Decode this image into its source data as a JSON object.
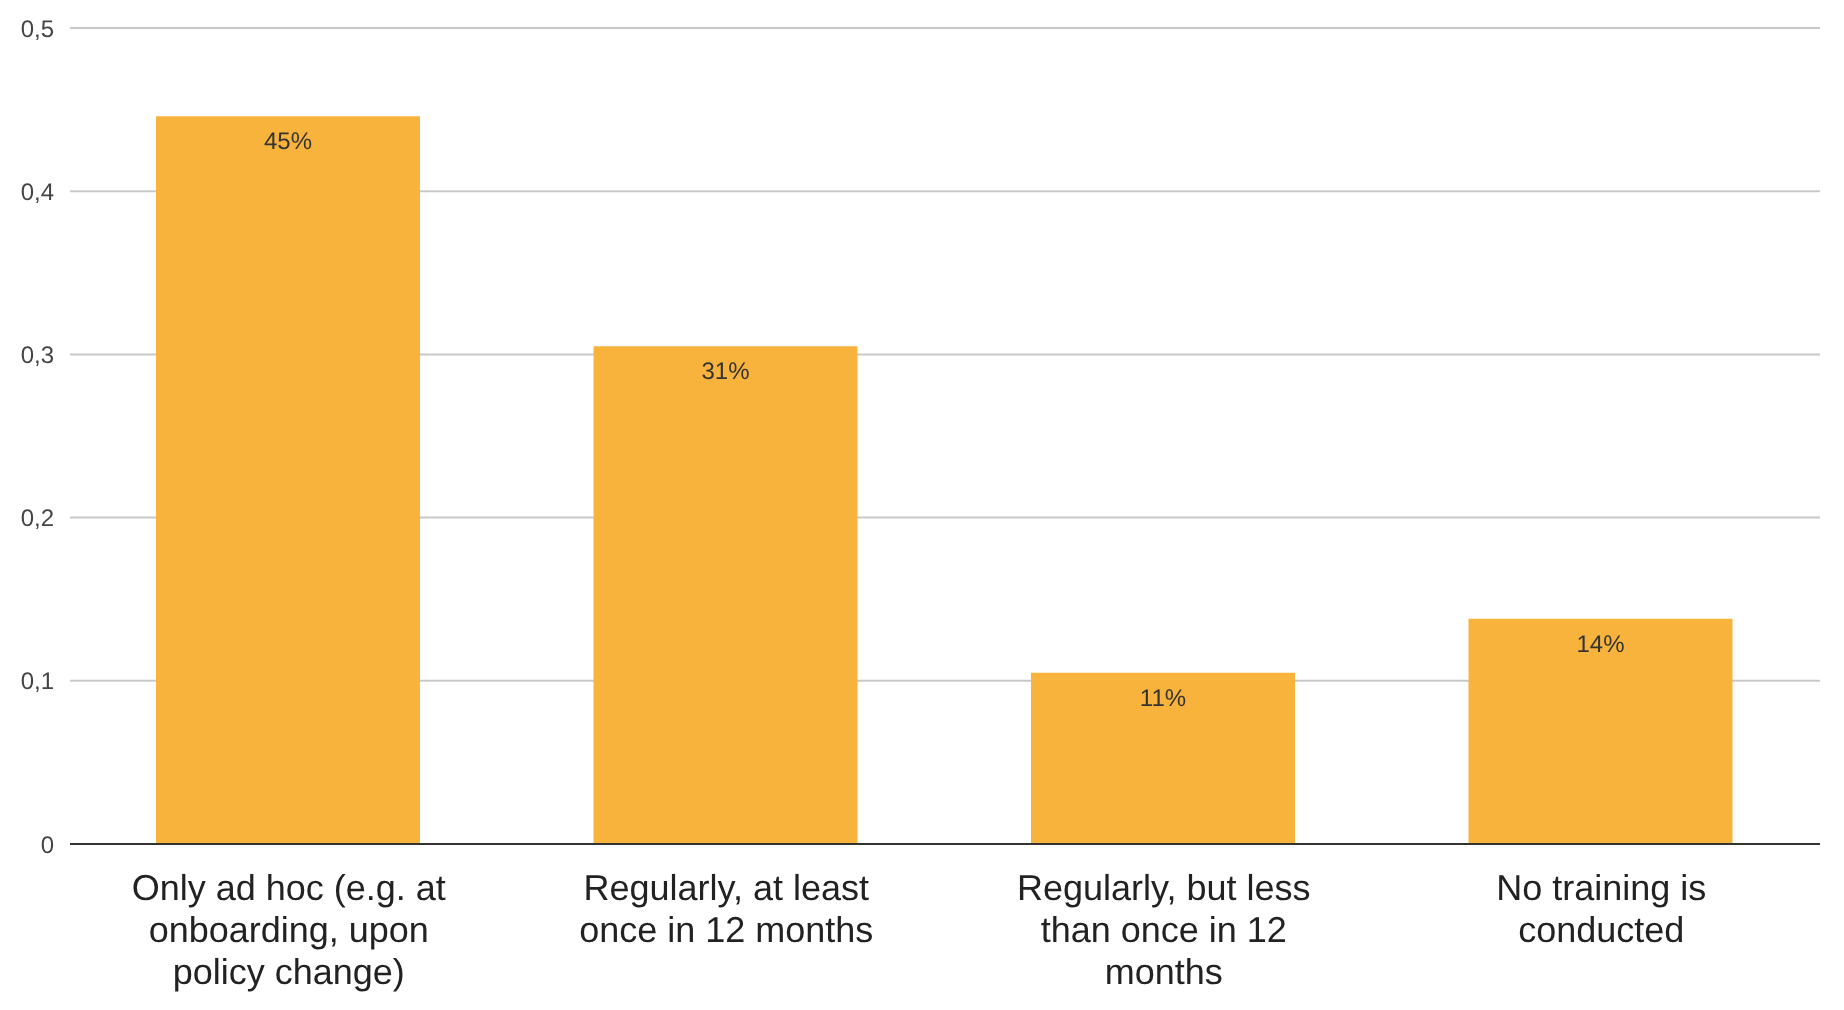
{
  "chart_data": {
    "type": "bar",
    "categories": [
      "Only ad hoc (e.g. at onboarding, upon policy change)",
      "Regularly, at least once in 12 months",
      "Regularly, but less than once in 12 months",
      "No training is conducted"
    ],
    "values": [
      0.446,
      0.305,
      0.105,
      0.138
    ],
    "value_labels": [
      "45%",
      "31%",
      "11%",
      "14%"
    ],
    "color": "#f8b33d",
    "ylim": [
      0,
      0.5
    ],
    "yticks": [
      {
        "value": 0,
        "label": "0"
      },
      {
        "value": 0.1,
        "label": "0,1"
      },
      {
        "value": 0.2,
        "label": "0,2"
      },
      {
        "value": 0.3,
        "label": "0,3"
      },
      {
        "value": 0.4,
        "label": "0,4"
      },
      {
        "value": 0.5,
        "label": "0,5"
      }
    ],
    "grid": "y",
    "legend": false
  }
}
